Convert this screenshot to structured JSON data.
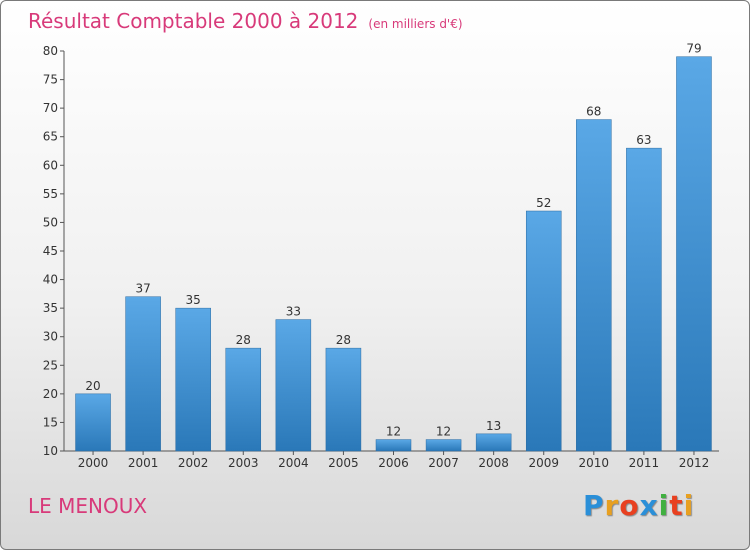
{
  "chart_data": {
    "type": "bar",
    "title": "Résultat Comptable 2000 à 2012",
    "subtitle": "(en milliers d'€)",
    "categories": [
      "2000",
      "2001",
      "2002",
      "2003",
      "2004",
      "2005",
      "2006",
      "2007",
      "2008",
      "2009",
      "2010",
      "2011",
      "2012"
    ],
    "values": [
      20,
      37,
      35,
      28,
      33,
      28,
      12,
      12,
      13,
      52,
      68,
      63,
      79
    ],
    "ylim": [
      10,
      80
    ],
    "yticks": [
      10,
      15,
      20,
      25,
      30,
      35,
      40,
      45,
      50,
      55,
      60,
      65,
      70,
      75,
      80
    ],
    "grid": false,
    "xlabel": "",
    "ylabel": ""
  },
  "commune": "LE MENOUX",
  "logo": {
    "letters": [
      "P",
      "r",
      "o",
      "x",
      "i",
      "t",
      "i"
    ],
    "colors": [
      "#2a8fd8",
      "#e8a020",
      "#e84020",
      "#2a8fd8",
      "#40b040",
      "#e84020",
      "#e8a020"
    ]
  },
  "colors": {
    "title": "#d83a7a",
    "bar_top": "#5aa8e6",
    "bar_bottom": "#2a78b8",
    "axis": "#555555"
  }
}
